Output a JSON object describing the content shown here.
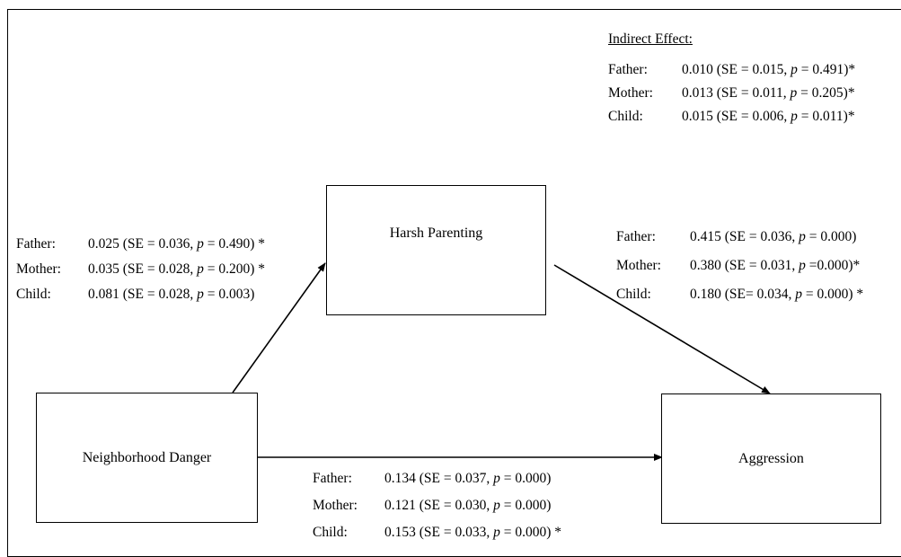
{
  "boxes": {
    "mediator": "Harsh Parenting",
    "predictor": "Neighborhood Danger",
    "outcome": "Aggression"
  },
  "indirect": {
    "title": "Indirect Effect:",
    "rows": [
      {
        "label": "Father:",
        "value": "0.010 (SE = 0.015, p = 0.491)*"
      },
      {
        "label": "Mother:",
        "value": "0.013 (SE = 0.011, p = 0.205)*"
      },
      {
        "label": "Child:",
        "value": "0.015 (SE = 0.006, p = 0.011)*"
      }
    ]
  },
  "path_a": {
    "rows": [
      {
        "label": "Father:",
        "value": "0.025 (SE = 0.036, p = 0.490) *"
      },
      {
        "label": "Mother:",
        "value": "0.035 (SE = 0.028, p = 0.200) *"
      },
      {
        "label": "Child:",
        "value": "0.081 (SE = 0.028, p = 0.003)"
      }
    ]
  },
  "path_b": {
    "rows": [
      {
        "label": "Father:",
        "value": "0.415 (SE = 0.036, p = 0.000)"
      },
      {
        "label": "Mother:",
        "value": "0.380 (SE = 0.031, p =0.000)*"
      },
      {
        "label": "Child:",
        "value": "0.180 (SE= 0.034, p = 0.000) *"
      }
    ]
  },
  "path_c": {
    "rows": [
      {
        "label": "Father:",
        "value": "0.134 (SE = 0.037, p = 0.000)"
      },
      {
        "label": "Mother:",
        "value": "0.121 (SE = 0.030, p = 0.000)"
      },
      {
        "label": "Child:",
        "value": "0.153 (SE = 0.033, p = 0.000) *"
      }
    ]
  }
}
